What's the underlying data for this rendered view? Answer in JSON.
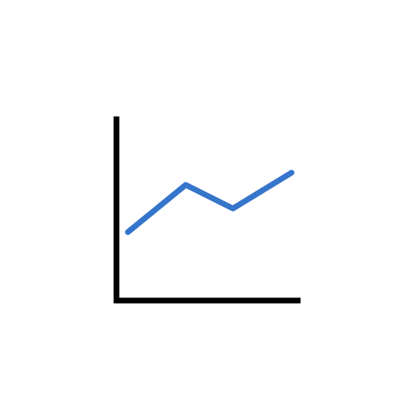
{
  "icon": {
    "name": "line-chart-icon",
    "axis_color": "#000000",
    "line_color": "#3575CB",
    "background": "#FFFFFF"
  }
}
